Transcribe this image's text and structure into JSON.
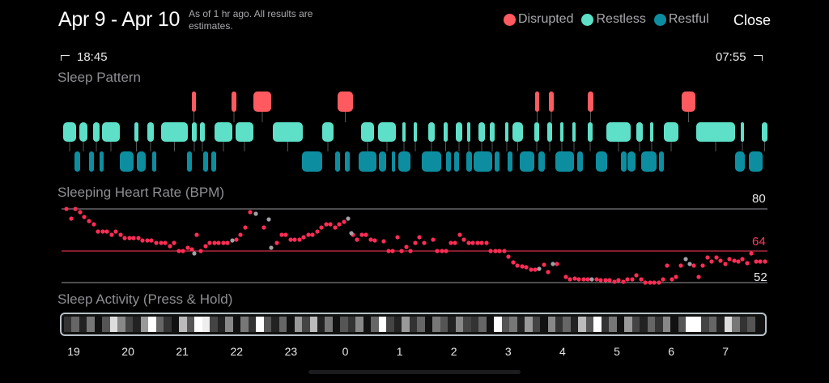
{
  "header": {
    "date_range": "Apr 9 - Apr 10",
    "as_of_note": "As of 1 hr ago. All results are estimates.",
    "legend": [
      {
        "label": "Disrupted",
        "color": "#ff5a5f"
      },
      {
        "label": "Restless",
        "color": "#5ee0c8"
      },
      {
        "label": "Restful",
        "color": "#0d8ea0"
      }
    ],
    "close_label": "Close"
  },
  "times": {
    "start": "18:45",
    "end": "07:55"
  },
  "sections": {
    "sleep_pattern": "Sleep Pattern",
    "heart_rate": "Sleeping Heart Rate (BPM)",
    "activity": "Sleep Activity (Press & Hold)"
  },
  "heart_rate": {
    "ref_lines": [
      {
        "label": "80",
        "value": 80,
        "color": "#9a9aa0"
      },
      {
        "label": "64",
        "value": 64,
        "color": "#ff3b5c"
      },
      {
        "label": "52",
        "value": 52,
        "color": "#9a9aa0"
      }
    ],
    "y_range": [
      52,
      80
    ]
  },
  "timeline_hours": [
    "19",
    "20",
    "21",
    "22",
    "23",
    "0",
    "1",
    "2",
    "3",
    "4",
    "5",
    "6",
    "7"
  ],
  "colors": {
    "disrupted": "#ff5a5f",
    "restless": "#5ee0c8",
    "restful": "#0d8ea0",
    "hr_dot": "#ff2d55",
    "hr_dot_gray": "#a0a0a6",
    "strip_border": "#b7c0c8"
  }
}
